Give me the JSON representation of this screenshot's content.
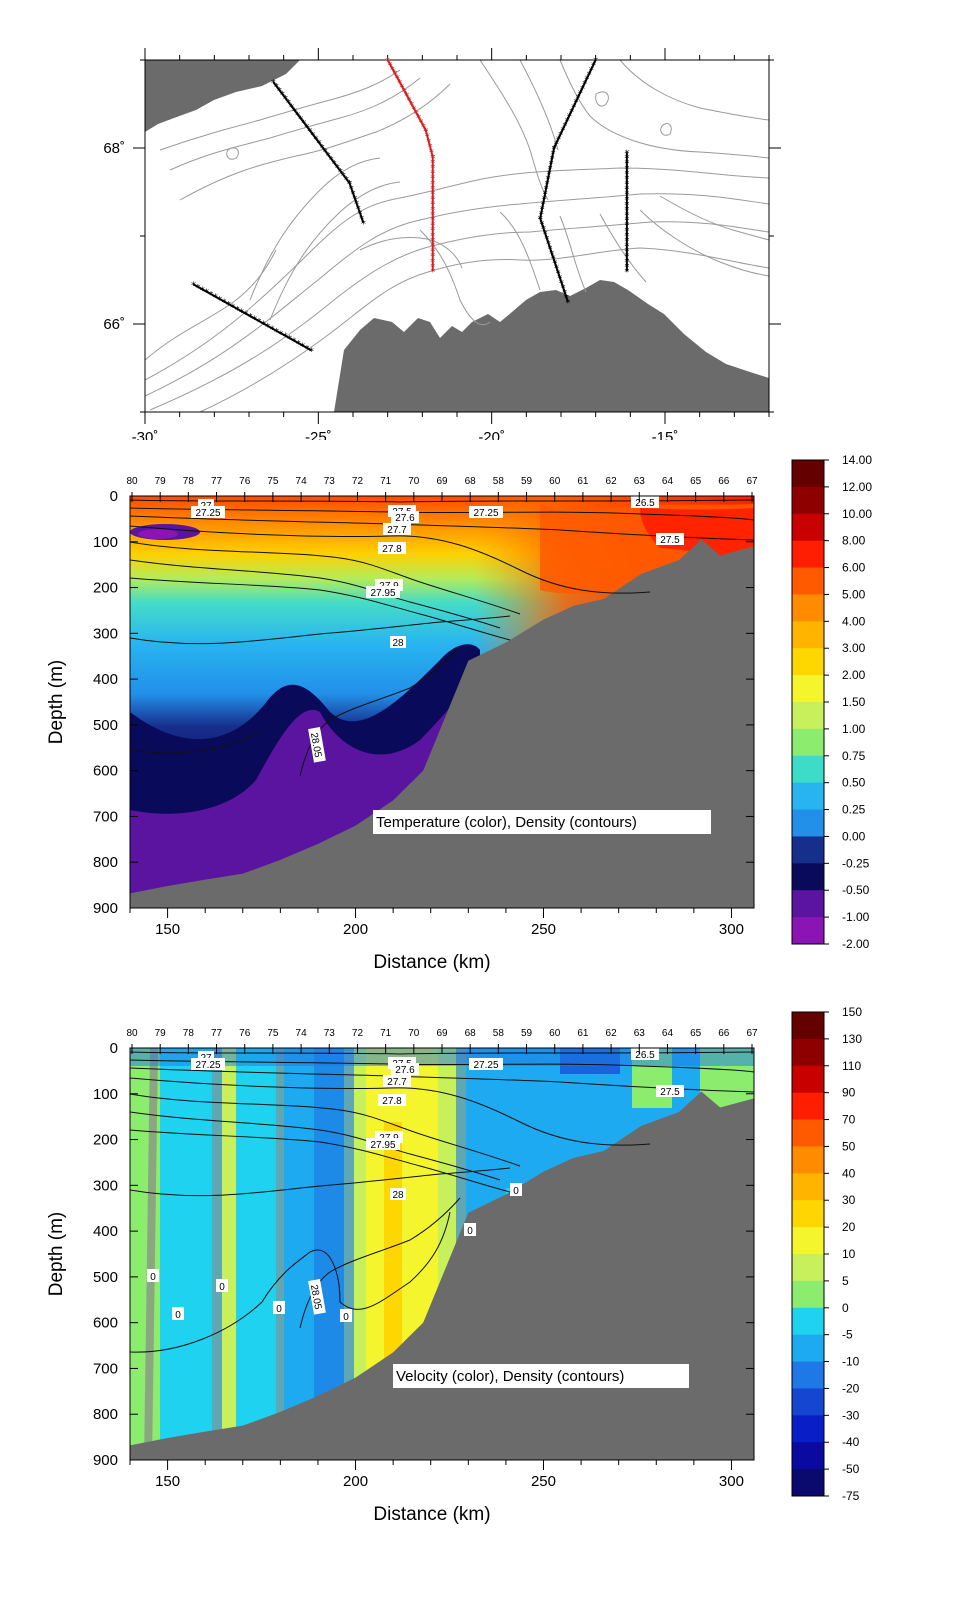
{
  "chart_data": [
    {
      "type": "map",
      "x_ticks": [
        "-30˚",
        "-25˚",
        "-20˚",
        "-15˚"
      ],
      "x_values": [
        -30,
        -25,
        -20,
        -15
      ],
      "y_ticks": [
        "66˚",
        "68˚"
      ],
      "y_values": [
        66,
        68
      ],
      "xlim": [
        -30,
        -12
      ],
      "ylim": [
        65,
        69
      ],
      "sections": [
        {
          "name": "section-1",
          "color": "#000000",
          "points": [
            [
              -28.6,
              66.45
            ],
            [
              -25.2,
              65.7
            ]
          ]
        },
        {
          "name": "section-2",
          "color": "#000000",
          "points": [
            [
              -26.3,
              68.75
            ],
            [
              -24.1,
              67.6
            ],
            [
              -23.7,
              67.15
            ]
          ]
        },
        {
          "name": "section-3-highlighted",
          "color": "#d42020",
          "points": [
            [
              -23.0,
              69.0
            ],
            [
              -21.9,
              68.2
            ],
            [
              -21.7,
              67.9
            ],
            [
              -21.7,
              66.6
            ]
          ]
        },
        {
          "name": "section-4",
          "color": "#000000",
          "points": [
            [
              -17.0,
              69.0
            ],
            [
              -18.2,
              68.0
            ],
            [
              -18.6,
              67.2
            ],
            [
              -17.8,
              66.25
            ]
          ]
        },
        {
          "name": "section-5",
          "color": "#000000",
          "points": [
            [
              -16.1,
              67.95
            ],
            [
              -16.1,
              66.6
            ]
          ]
        }
      ]
    },
    {
      "type": "heatmap",
      "title": "Temperature (color), Density (contours)",
      "xlabel": "Distance (km)",
      "ylabel": "Depth (m)",
      "xlim": [
        140,
        306
      ],
      "ylim": [
        900,
        0
      ],
      "x_ticks": [
        150,
        200,
        250,
        300
      ],
      "y_ticks": [
        0,
        100,
        200,
        300,
        400,
        500,
        600,
        700,
        800,
        900
      ],
      "stations": [
        "80",
        "79",
        "78",
        "77",
        "76",
        "75",
        "74",
        "73",
        "72",
        "71",
        "70",
        "69",
        "68",
        "58",
        "59",
        "60",
        "61",
        "62",
        "63",
        "64",
        "65",
        "66",
        "67"
      ],
      "colorbar_labels": [
        "14.00",
        "12.00",
        "10.00",
        "8.00",
        "6.00",
        "5.00",
        "4.00",
        "3.00",
        "2.00",
        "1.50",
        "1.00",
        "0.75",
        "0.50",
        "0.25",
        "0.00",
        "-0.25",
        "-0.50",
        "-1.00",
        "-2.00"
      ],
      "colorbar_colors": [
        "#650000",
        "#8e0000",
        "#c80000",
        "#ff1e00",
        "#ff5a00",
        "#ff8c00",
        "#ffb400",
        "#ffd700",
        "#f5f52d",
        "#c8f05a",
        "#8cec6e",
        "#3cdcc8",
        "#28b4f0",
        "#2290e8",
        "#162e8c",
        "#0a0a5a",
        "#5a14a0",
        "#8c14b4"
      ],
      "density_contour_labels": [
        "27",
        "27.25",
        "27.5",
        "27.6",
        "27.25",
        "27.7",
        "27.8",
        "27.9",
        "27.95",
        "28",
        "28.05",
        "26.5",
        "27.5"
      ],
      "bottom_profile": [
        [
          140,
          868
        ],
        [
          150,
          852
        ],
        [
          160,
          838
        ],
        [
          170,
          825
        ],
        [
          180,
          795
        ],
        [
          190,
          760
        ],
        [
          200,
          720
        ],
        [
          210,
          665
        ],
        [
          218,
          600
        ],
        [
          224,
          480
        ],
        [
          230,
          360
        ],
        [
          240,
          320
        ],
        [
          250,
          270
        ],
        [
          258,
          240
        ],
        [
          266,
          225
        ],
        [
          276,
          170
        ],
        [
          286,
          140
        ],
        [
          292,
          95
        ],
        [
          297,
          130
        ],
        [
          306,
          110
        ]
      ]
    },
    {
      "type": "heatmap",
      "title": "Velocity (color), Density (contours)",
      "xlabel": "Distance (km)",
      "ylabel": "Depth (m)",
      "xlim": [
        140,
        306
      ],
      "ylim": [
        900,
        0
      ],
      "x_ticks": [
        150,
        200,
        250,
        300
      ],
      "y_ticks": [
        0,
        100,
        200,
        300,
        400,
        500,
        600,
        700,
        800,
        900
      ],
      "stations": [
        "80",
        "79",
        "78",
        "77",
        "76",
        "75",
        "74",
        "73",
        "72",
        "71",
        "70",
        "69",
        "68",
        "58",
        "59",
        "60",
        "61",
        "62",
        "63",
        "64",
        "65",
        "66",
        "67"
      ],
      "colorbar_labels": [
        "150",
        "130",
        "110",
        "90",
        "70",
        "50",
        "40",
        "30",
        "20",
        "10",
        "5",
        "0",
        "-5",
        "-10",
        "-20",
        "-30",
        "-40",
        "-50",
        "-75"
      ],
      "colorbar_colors": [
        "#650000",
        "#8e0000",
        "#c80000",
        "#ff1e00",
        "#ff5a00",
        "#ff8c00",
        "#ffb400",
        "#ffd700",
        "#f5f52d",
        "#c8f05a",
        "#8cec6e",
        "#1ed2f0",
        "#1eaaf0",
        "#1e78e6",
        "#1446d2",
        "#0a1ec8",
        "#0a0aa0",
        "#0a0a6e"
      ],
      "velocity_contour_labels": [
        "0",
        "0",
        "0",
        "0",
        "0",
        "0",
        "0"
      ],
      "density_contour_labels": [
        "27",
        "27.25",
        "27.5",
        "27.6",
        "27.25",
        "27.7",
        "27.8",
        "27.9",
        "27.95",
        "28",
        "28.05",
        "26.5",
        "27.5"
      ],
      "bottom_profile": [
        [
          140,
          868
        ],
        [
          150,
          852
        ],
        [
          160,
          838
        ],
        [
          170,
          825
        ],
        [
          180,
          795
        ],
        [
          190,
          760
        ],
        [
          200,
          720
        ],
        [
          210,
          665
        ],
        [
          218,
          600
        ],
        [
          224,
          480
        ],
        [
          230,
          360
        ],
        [
          240,
          320
        ],
        [
          250,
          270
        ],
        [
          258,
          240
        ],
        [
          266,
          225
        ],
        [
          276,
          170
        ],
        [
          286,
          140
        ],
        [
          292,
          95
        ],
        [
          297,
          130
        ],
        [
          306,
          110
        ]
      ]
    }
  ]
}
